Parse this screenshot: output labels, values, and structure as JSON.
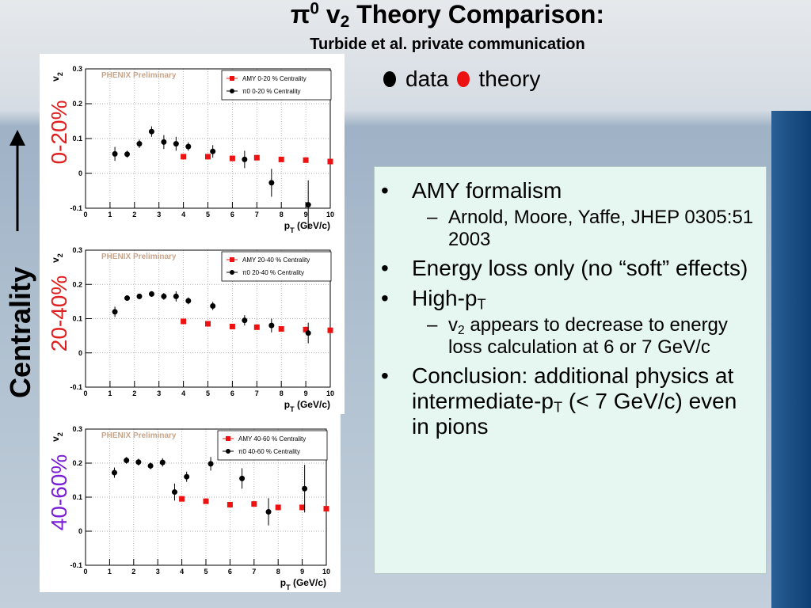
{
  "title": [
    "π",
    {
      "sup": "0"
    },
    " v",
    {
      "sub": "2"
    },
    " Theory Comparison:"
  ],
  "subtitle": "Turbide et al. private communication",
  "legend": [
    {
      "name": "data",
      "color": "#000000"
    },
    {
      "name": "theory",
      "color": "#ee1111"
    }
  ],
  "side_label": "Centrality",
  "bullets": [
    {
      "level": 1,
      "parts": [
        "AMY formalism"
      ]
    },
    {
      "level": 2,
      "parts": [
        "Arnold, Moore, Yaffe,       JHEP 0305:51 2003"
      ]
    },
    {
      "level": 1,
      "parts": [
        "Energy loss only (no “soft” effects)"
      ]
    },
    {
      "level": 1,
      "parts": [
        "High-p",
        {
          "sub": "T"
        }
      ]
    },
    {
      "level": 2,
      "parts": [
        "v",
        {
          "sub": "2"
        },
        " appears to decrease to energy loss calculation at 6 or 7 GeV/c"
      ]
    },
    {
      "level": 1,
      "parts": [
        "Conclusion: additional physics at intermediate-p",
        {
          "sub": "T"
        },
        " (< 7 GeV/c) even in pions"
      ]
    }
  ],
  "chart_data": [
    {
      "type": "scatter",
      "panel_label": "0-20%",
      "panel_color": "#e02020",
      "watermark": "PHENIX Preliminary",
      "ylabel": [
        "v",
        {
          "sub": "2"
        }
      ],
      "xlabel": [
        "p",
        {
          "sub": "T"
        },
        " (GeV/c)"
      ],
      "xlim": [
        0,
        10
      ],
      "ylim": [
        -0.1,
        0.3
      ],
      "xticks": [
        0,
        1,
        2,
        3,
        4,
        5,
        6,
        7,
        8,
        9,
        10
      ],
      "yticks": [
        -0.1,
        0,
        0.1,
        0.2,
        0.3
      ],
      "grid": true,
      "series": [
        {
          "name": "AMY 0-20 % Centrality",
          "color": "#ee1111",
          "marker": "square",
          "x": [
            4,
            5,
            6,
            7,
            8,
            9,
            10
          ],
          "values": [
            0.048,
            0.048,
            0.043,
            0.045,
            0.04,
            0.038,
            0.034
          ]
        },
        {
          "name": "π0 0-20 % Centrality",
          "color": "#000000",
          "marker": "circle",
          "x": [
            1.2,
            1.7,
            2.2,
            2.7,
            3.2,
            3.7,
            4.2,
            5.2,
            6.5,
            7.6,
            9.1
          ],
          "values": [
            0.056,
            0.055,
            0.085,
            0.12,
            0.09,
            0.085,
            0.077,
            0.063,
            0.04,
            -0.027,
            -0.09
          ],
          "errors": [
            0.02,
            0.01,
            0.012,
            0.015,
            0.02,
            0.02,
            0.012,
            0.018,
            0.025,
            0.04,
            0.07
          ]
        }
      ]
    },
    {
      "type": "scatter",
      "panel_label": "20-40%",
      "panel_color": "#e02020",
      "watermark": "PHENIX Preliminary",
      "ylabel": [
        "v",
        {
          "sub": "2"
        }
      ],
      "xlabel": [
        "p",
        {
          "sub": "T"
        },
        " (GeV/c)"
      ],
      "xlim": [
        0,
        10
      ],
      "ylim": [
        -0.1,
        0.3
      ],
      "xticks": [
        0,
        1,
        2,
        3,
        4,
        5,
        6,
        7,
        8,
        9,
        10
      ],
      "yticks": [
        -0.1,
        0,
        0.1,
        0.2,
        0.3
      ],
      "grid": true,
      "series": [
        {
          "name": "AMY 20-40 % Centrality",
          "color": "#ee1111",
          "marker": "square",
          "x": [
            4,
            5,
            6,
            7,
            8,
            9,
            10
          ],
          "values": [
            0.092,
            0.085,
            0.077,
            0.075,
            0.07,
            0.068,
            0.066
          ]
        },
        {
          "name": "π0 20-40 % Centrality",
          "color": "#000000",
          "marker": "circle",
          "x": [
            1.2,
            1.7,
            2.2,
            2.7,
            3.2,
            3.7,
            4.2,
            5.2,
            6.5,
            7.6,
            9.1
          ],
          "values": [
            0.12,
            0.16,
            0.165,
            0.172,
            0.165,
            0.165,
            0.152,
            0.137,
            0.095,
            0.08,
            0.058
          ],
          "errors": [
            0.015,
            0.008,
            0.008,
            0.008,
            0.01,
            0.015,
            0.01,
            0.012,
            0.015,
            0.02,
            0.03
          ]
        }
      ]
    },
    {
      "type": "scatter",
      "panel_label": "40-60%",
      "panel_color": "#7a1fd6",
      "watermark": "PHENIX Preliminary",
      "ylabel": [
        "v",
        {
          "sub": "2"
        }
      ],
      "xlabel": [
        "p",
        {
          "sub": "T"
        },
        " (GeV/c)"
      ],
      "xlim": [
        0,
        10
      ],
      "ylim": [
        -0.1,
        0.3
      ],
      "xticks": [
        0,
        1,
        2,
        3,
        4,
        5,
        6,
        7,
        8,
        9,
        10
      ],
      "yticks": [
        -0.1,
        0,
        0.1,
        0.2,
        0.3
      ],
      "grid": true,
      "series": [
        {
          "name": "AMY 40-60 % Centrality",
          "color": "#ee1111",
          "marker": "square",
          "x": [
            4,
            5,
            6,
            7,
            8,
            9,
            10
          ],
          "values": [
            0.095,
            0.088,
            0.078,
            0.08,
            0.07,
            0.07,
            0.066
          ]
        },
        {
          "name": "π0 40-60 % Centrality",
          "color": "#000000",
          "marker": "circle",
          "x": [
            1.2,
            1.7,
            2.2,
            2.7,
            3.2,
            3.7,
            4.2,
            5.2,
            6.5,
            7.6,
            9.1
          ],
          "values": [
            0.172,
            0.208,
            0.203,
            0.192,
            0.202,
            0.115,
            0.16,
            0.198,
            0.155,
            0.057,
            0.125
          ],
          "errors": [
            0.015,
            0.01,
            0.01,
            0.01,
            0.012,
            0.025,
            0.015,
            0.02,
            0.03,
            0.04,
            0.07
          ]
        }
      ]
    }
  ]
}
